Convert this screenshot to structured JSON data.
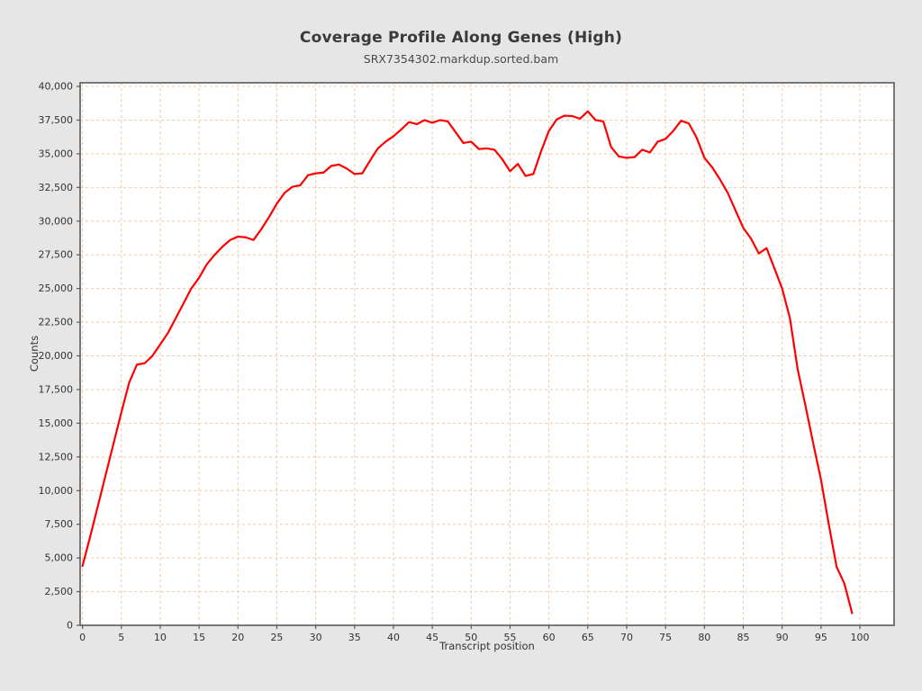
{
  "header": {
    "title": "Coverage Profile Along Genes (High)",
    "subtitle": "SRX7354302.markdup.sorted.bam"
  },
  "chart_data": {
    "type": "line",
    "title": "Coverage Profile Along Genes (High)",
    "subtitle": "SRX7354302.markdup.sorted.bam",
    "xlabel": "Transcript position",
    "ylabel": "Counts",
    "xlim": [
      -0.3,
      104.4
    ],
    "ylim": [
      0,
      40270
    ],
    "x_ticks": [
      0,
      5,
      10,
      15,
      20,
      25,
      30,
      35,
      40,
      45,
      50,
      55,
      60,
      65,
      70,
      75,
      80,
      85,
      90,
      95,
      100
    ],
    "y_ticks": [
      0,
      2500,
      5000,
      7500,
      10000,
      12500,
      15000,
      17500,
      20000,
      22500,
      25000,
      27500,
      30000,
      32500,
      35000,
      37500,
      40000
    ],
    "grid": "dashed-both-axes",
    "legend": "none",
    "series": [
      {
        "name": "coverage",
        "color": "#ff0000",
        "x_start": 0,
        "x_step": 1,
        "y": [
          4400,
          6600,
          8900,
          11200,
          13500,
          15800,
          18000,
          19350,
          19450,
          20000,
          20850,
          21700,
          22800,
          23900,
          25000,
          25800,
          26800,
          27500,
          28100,
          28600,
          28850,
          28800,
          28600,
          29400,
          30300,
          31300,
          32100,
          32550,
          32650,
          33400,
          33550,
          33600,
          34100,
          34200,
          33900,
          33500,
          33550,
          34500,
          35400,
          35900,
          36300,
          36800,
          37350,
          37200,
          37500,
          37300,
          37500,
          37400,
          36600,
          35800,
          35900,
          35350,
          35400,
          35300,
          34600,
          33700,
          34250,
          33350,
          33500,
          35200,
          36700,
          37550,
          37830,
          37800,
          37600,
          38150,
          37500,
          37400,
          35500,
          34800,
          34700,
          34750,
          35300,
          35100,
          35900,
          36100,
          36700,
          37450,
          37250,
          36200,
          34700,
          34000,
          33100,
          32100,
          30800,
          29500,
          28700,
          27600,
          28000,
          26500,
          25000,
          22800,
          19000,
          16300,
          13500,
          10800,
          7500,
          4350,
          3100,
          900
        ]
      }
    ]
  },
  "style": {
    "background_color": "#e6e6e6",
    "plot_background_color": "#ffffff",
    "grid_color": "#f2c9a3",
    "axis_color": "#595959",
    "tick_label_color": "#333333",
    "line_color": "#ff0000"
  }
}
